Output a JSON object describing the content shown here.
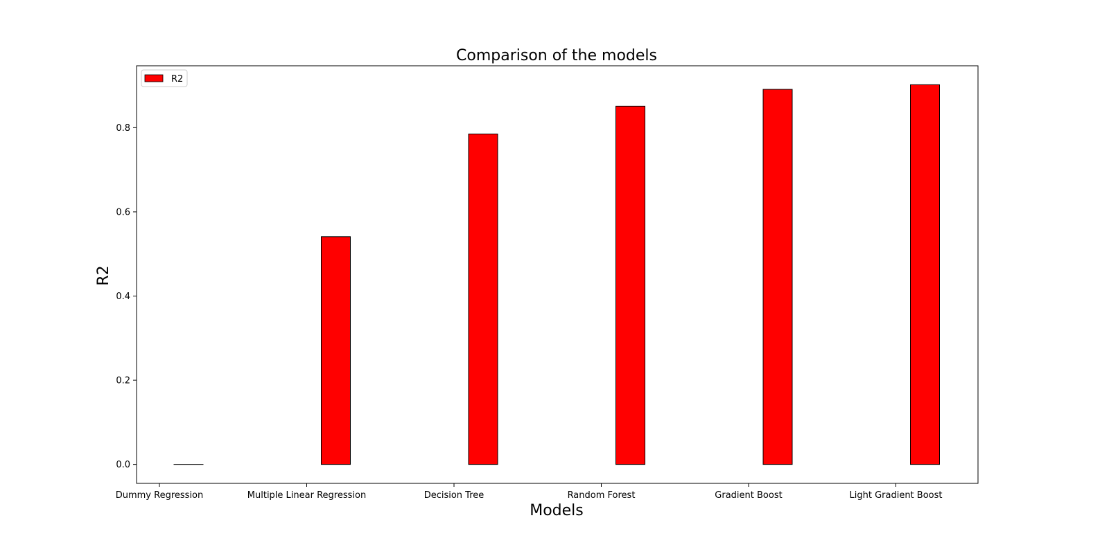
{
  "chart_data": {
    "type": "bar",
    "title": "Comparison of the models",
    "xlabel": "Models",
    "ylabel": "R2",
    "categories": [
      "Dummy Regression",
      "Multiple Linear Regression",
      "Decision Tree",
      "Random Forest",
      "Gradient Boost",
      "Light Gradient Boost"
    ],
    "series": [
      {
        "name": "R2",
        "values": [
          0.0,
          0.541,
          0.785,
          0.851,
          0.891,
          0.902
        ],
        "color": "#ff0000",
        "edge_color": "#000000"
      }
    ],
    "ylim": [
      -0.045,
      0.947
    ],
    "yticks": [
      0.0,
      0.2,
      0.4,
      0.6,
      0.8
    ],
    "ytick_labels": [
      "0.0",
      "0.2",
      "0.4",
      "0.6",
      "0.8"
    ],
    "grid": false,
    "legend_position": "upper-left"
  }
}
